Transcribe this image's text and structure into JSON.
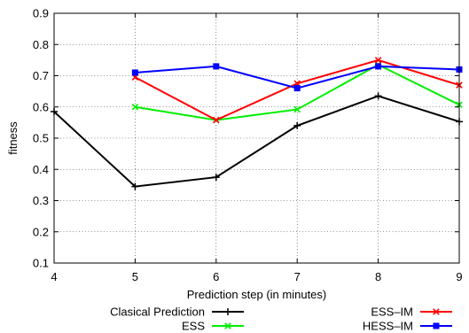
{
  "chart_data": {
    "type": "line",
    "title": "",
    "xlabel": "Prediction step (in minutes)",
    "ylabel": "fitness",
    "xlim": [
      4,
      9
    ],
    "ylim": [
      0.1,
      0.9
    ],
    "xticks": [
      "4",
      "5",
      "6",
      "7",
      "8",
      "9"
    ],
    "yticks": [
      "0.1",
      "0.2",
      "0.3",
      "0.4",
      "0.5",
      "0.6",
      "0.7",
      "0.8",
      "0.9"
    ],
    "grid": true,
    "legend_position": "bottom",
    "series": [
      {
        "name": "Clasical Prediction",
        "color": "#000000",
        "marker": "plus",
        "x": [
          4,
          5,
          6,
          7,
          8,
          9
        ],
        "y": [
          0.585,
          0.345,
          0.375,
          0.54,
          0.635,
          0.553
        ]
      },
      {
        "name": "ESS",
        "color": "#00ee00",
        "marker": "cross",
        "x": [
          5,
          6,
          7,
          8,
          9
        ],
        "y": [
          0.6,
          0.558,
          0.592,
          0.735,
          0.607
        ]
      },
      {
        "name": "ESS–IM",
        "color": "#ff0000",
        "marker": "cross",
        "x": [
          5,
          6,
          7,
          8,
          9
        ],
        "y": [
          0.695,
          0.558,
          0.675,
          0.75,
          0.67
        ]
      },
      {
        "name": "HESS–IM",
        "color": "#0000ff",
        "marker": "square",
        "x": [
          5,
          6,
          7,
          8,
          9
        ],
        "y": [
          0.71,
          0.73,
          0.66,
          0.73,
          0.72
        ]
      }
    ]
  }
}
